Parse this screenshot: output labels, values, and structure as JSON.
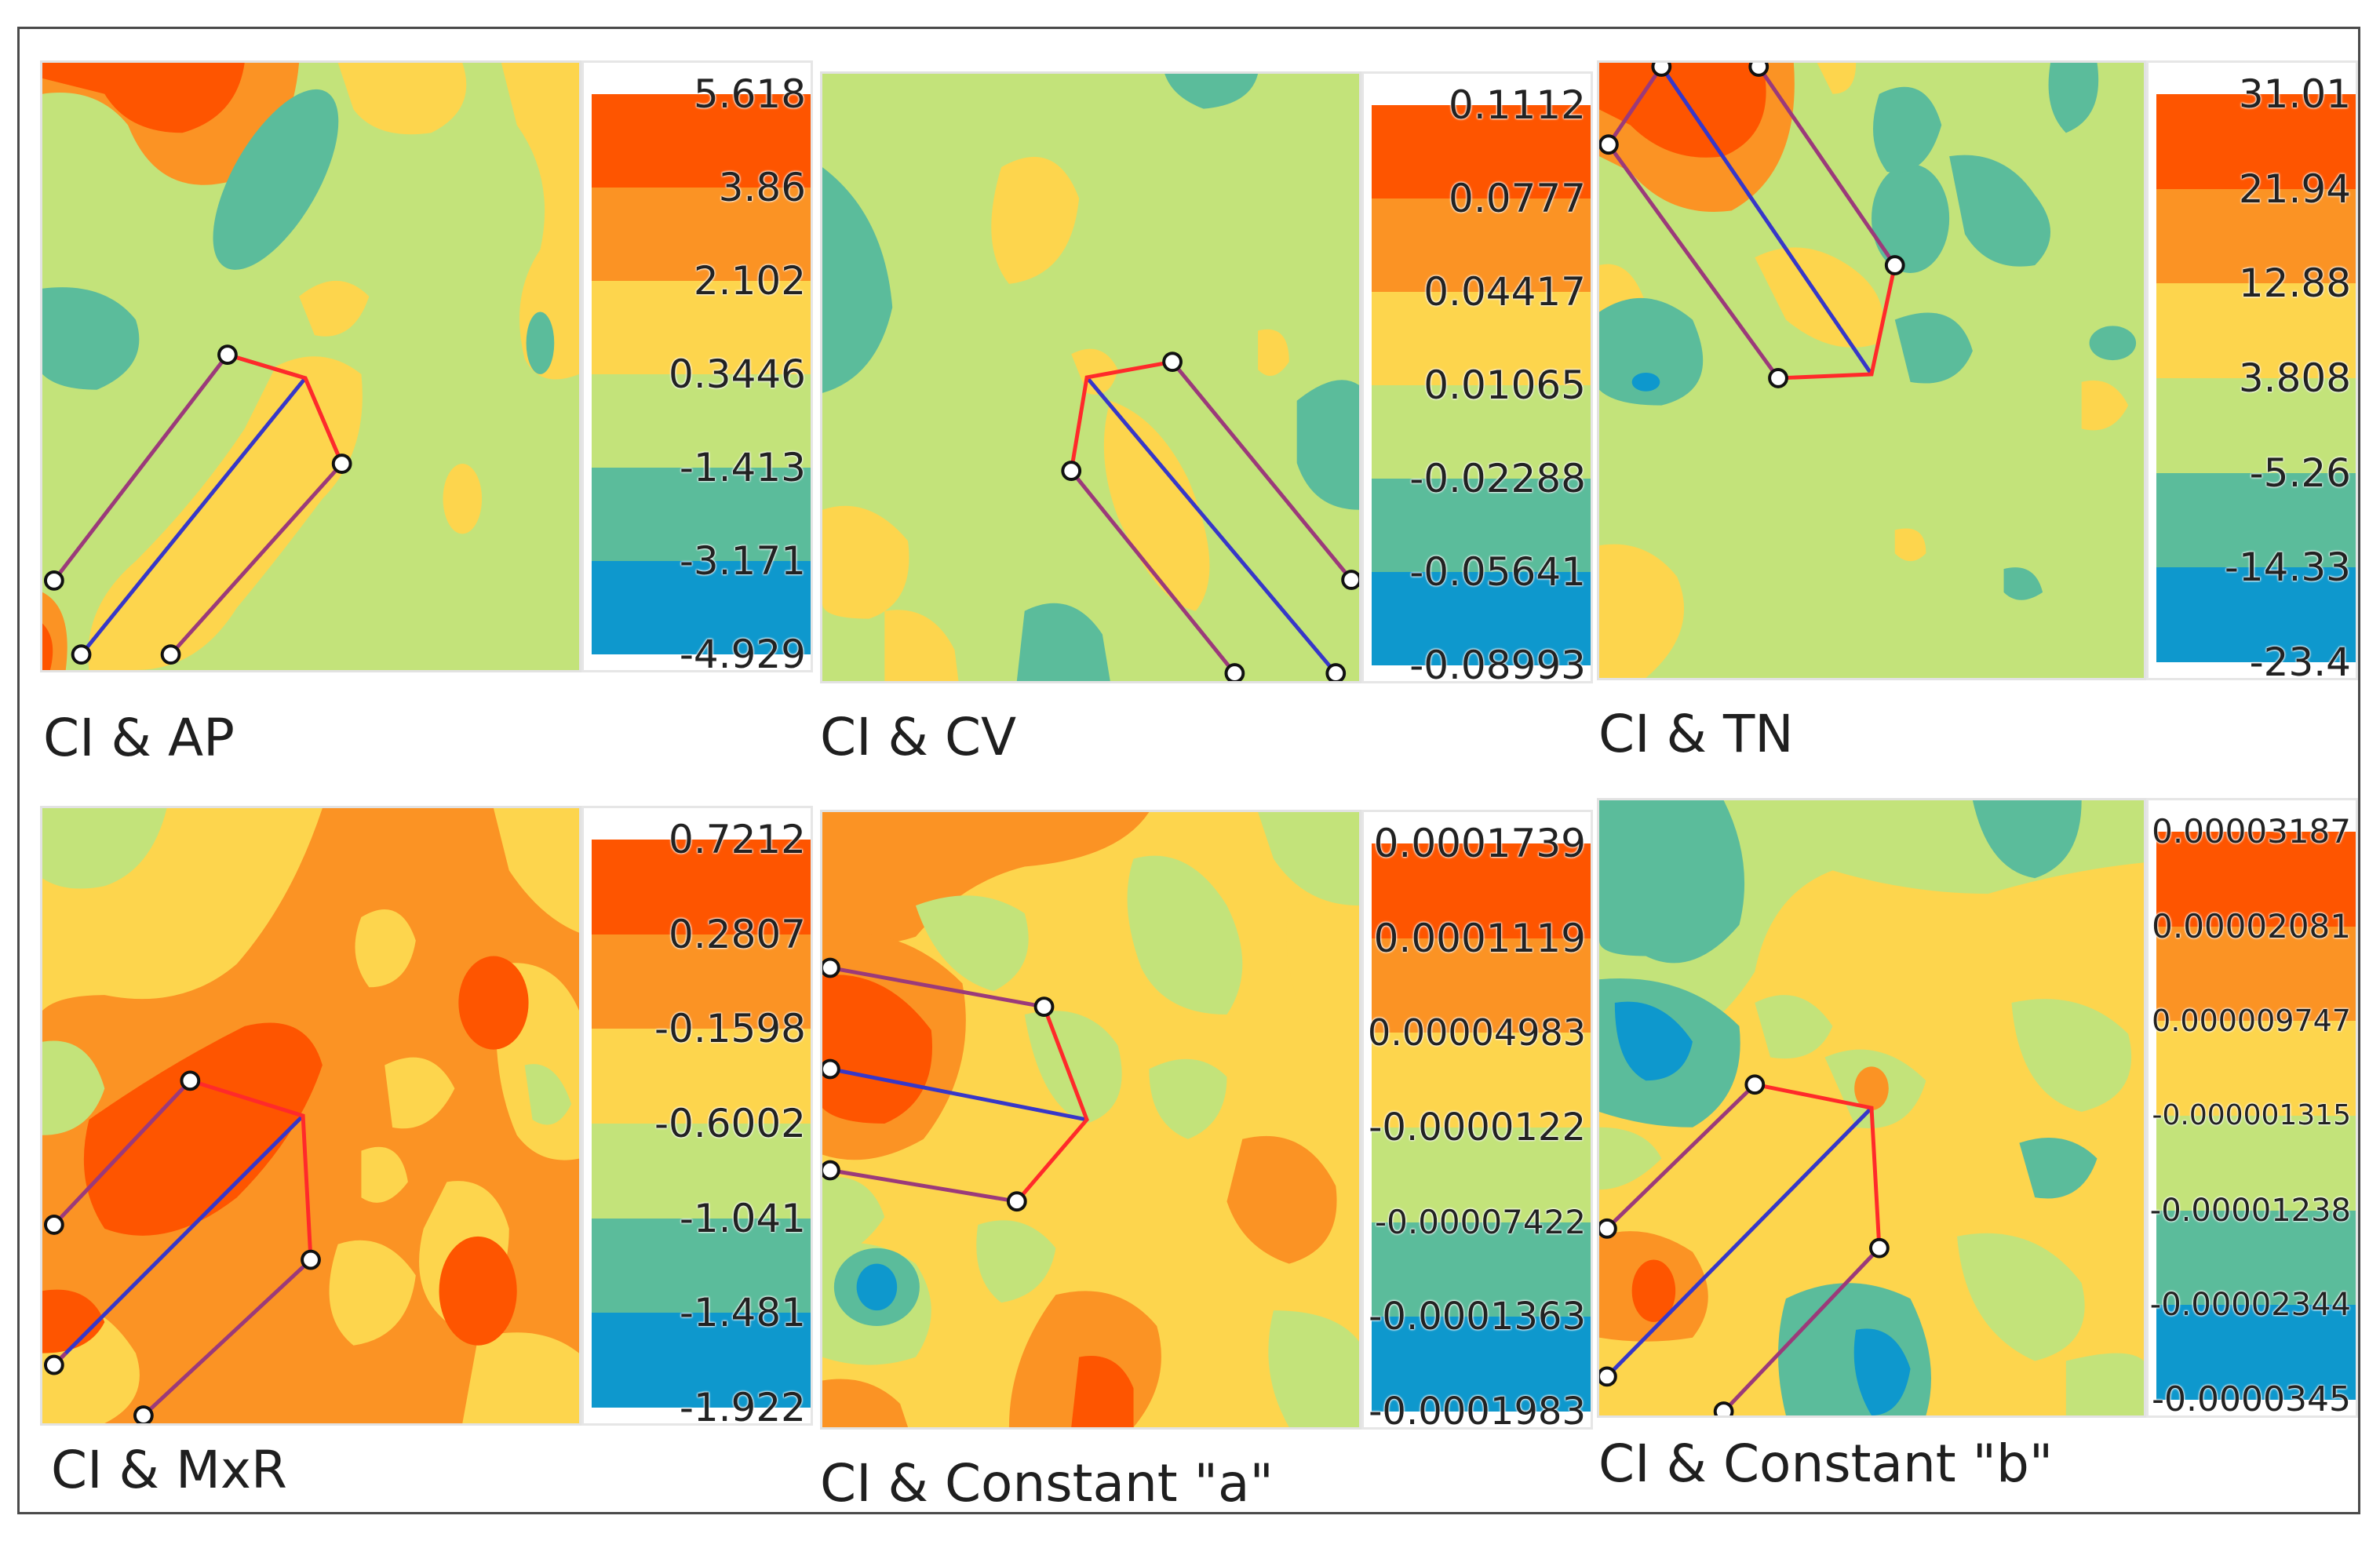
{
  "palette": [
    "#fe5500",
    "#fb9324",
    "#fdd54d",
    "#c3e37a",
    "#5bbc9b",
    "#0e98cd"
  ],
  "panels": [
    {
      "caption": "CI & AP",
      "legend": [
        "5.618",
        "3.86",
        "2.102",
        "0.3446",
        "-1.413",
        "-3.171",
        "-4.929"
      ],
      "bands": 6
    },
    {
      "caption": "CI & CV",
      "legend": [
        "0.1112",
        "0.0777",
        "0.04417",
        "0.01065",
        "-0.02288",
        "-0.05641",
        "-0.08993"
      ],
      "bands": 6
    },
    {
      "caption": "CI & TN",
      "legend": [
        "31.01",
        "21.94",
        "12.88",
        "3.808",
        "-5.26",
        "-14.33",
        "-23.4"
      ],
      "bands": 6
    },
    {
      "caption": "CI & MxR",
      "legend": [
        "0.7212",
        "0.2807",
        "-0.1598",
        "-0.6002",
        "-1.041",
        "-1.481",
        "-1.922"
      ],
      "bands": 6
    },
    {
      "caption": "CI & Constant \"a\"",
      "legend": [
        "0.0001739",
        "0.0001119",
        "0.00004983",
        "-0.0000122",
        "-0.00007422",
        "-0.0001363",
        "-0.0001983"
      ],
      "bands": 6
    },
    {
      "caption": "CI & Constant \"b\"",
      "legend": [
        "0.00003187",
        "0.00002081",
        "0.000009747",
        "-0.000001315",
        "-0.00001238",
        "-0.00002344",
        "-0.0000345"
      ],
      "bands": 6
    }
  ]
}
